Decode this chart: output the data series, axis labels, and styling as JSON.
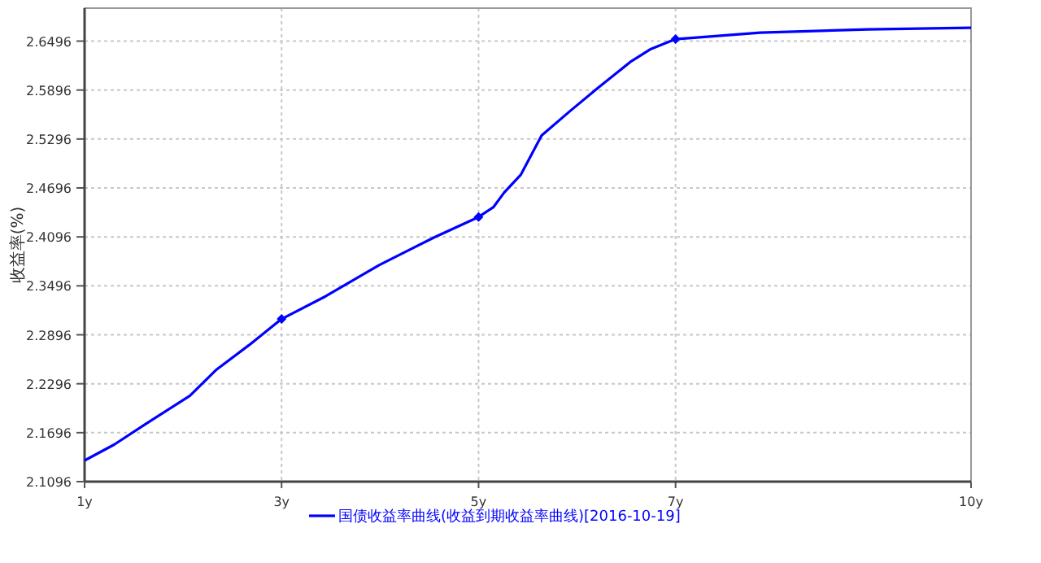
{
  "chart_data": {
    "type": "line",
    "ylabel": "收益率(%)",
    "xlim": [
      1,
      10
    ],
    "xticks": [
      {
        "value": 1,
        "label": "1y"
      },
      {
        "value": 3,
        "label": "3y"
      },
      {
        "value": 5,
        "label": "5y"
      },
      {
        "value": 7,
        "label": "7y"
      },
      {
        "value": 10,
        "label": "10y"
      }
    ],
    "ylim": [
      2.1096,
      2.69
    ],
    "yticks": [
      2.1096,
      2.1696,
      2.2296,
      2.2896,
      2.3496,
      2.4096,
      2.4696,
      2.5296,
      2.5896,
      2.6496
    ],
    "grid": true,
    "legend": "bottom",
    "series": [
      {
        "name": "国债收益率曲线(收益到期收益率曲线)[2016-10-19]",
        "color": "#0000ff",
        "marker": "none",
        "x": [
          1,
          1.3,
          1.63,
          2.07,
          2.34,
          2.67,
          3,
          3.45,
          3.99,
          4.55,
          5,
          5.15,
          5.26,
          5.43,
          5.64,
          5.93,
          6.21,
          6.54,
          6.75,
          7,
          7.86,
          8.95,
          10
        ],
        "values": [
          2.1355,
          2.155,
          2.181,
          2.215,
          2.247,
          2.277,
          2.309,
          2.337,
          2.375,
          2.409,
          2.434,
          2.446,
          2.464,
          2.486,
          2.534,
          2.564,
          2.592,
          2.624,
          2.64,
          2.652,
          2.66,
          2.664,
          2.666
        ]
      },
      {
        "type": "scatter",
        "color": "#0000ff",
        "marker": "diamond",
        "x": [
          3,
          5,
          7
        ],
        "values": [
          2.309,
          2.434,
          2.652
        ]
      }
    ]
  }
}
